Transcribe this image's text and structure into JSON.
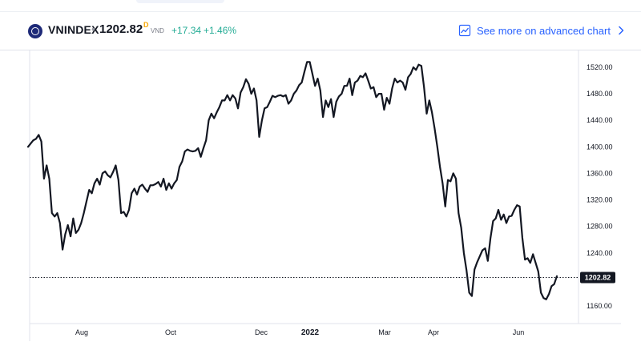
{
  "header": {
    "symbol": "VNINDEX",
    "separator": "•",
    "price": "1202.82",
    "price_superscript": "D",
    "currency": "VND",
    "change": "+17.34",
    "change_pct": "+1.46%",
    "advanced_chart_label": "See more on advanced chart"
  },
  "colors": {
    "line": "#131722",
    "positive": "#22ab94",
    "link": "#2962ff",
    "last_label_bg": "#131722"
  },
  "chart_data": {
    "type": "line",
    "title": "VNINDEX",
    "ylim": [
      1145,
      1537
    ],
    "y_ticks": [
      "1520.00",
      "1480.00",
      "1440.00",
      "1400.00",
      "1360.00",
      "1320.00",
      "1280.00",
      "1240.00",
      "1200.00",
      "1160.00"
    ],
    "x_ticks": [
      "Aug",
      "Oct",
      "Dec",
      "2022",
      "Mar",
      "Apr",
      "Jun"
    ],
    "last_value": 1202.82,
    "last_value_label": "1202.82",
    "series": [
      {
        "values": [
          1400,
          1405,
          1410,
          1412,
          1418,
          1408,
          1352,
          1372,
          1352,
          1300,
          1295,
          1300,
          1285,
          1245,
          1268,
          1282,
          1265,
          1292,
          1270,
          1275,
          1285,
          1300,
          1318,
          1335,
          1330,
          1345,
          1352,
          1343,
          1360,
          1363,
          1357,
          1354,
          1362,
          1372,
          1350,
          1300,
          1302,
          1295,
          1305,
          1330,
          1337,
          1328,
          1340,
          1343,
          1337,
          1332,
          1342,
          1342,
          1344,
          1347,
          1340,
          1352,
          1335,
          1345,
          1337,
          1345,
          1350,
          1370,
          1378,
          1393,
          1396,
          1394,
          1393,
          1394,
          1398,
          1385,
          1398,
          1410,
          1440,
          1450,
          1443,
          1452,
          1460,
          1470,
          1470,
          1478,
          1470,
          1478,
          1473,
          1458,
          1482,
          1490,
          1502,
          1495,
          1480,
          1488,
          1470,
          1415,
          1440,
          1458,
          1460,
          1468,
          1477,
          1475,
          1477,
          1478,
          1476,
          1478,
          1465,
          1470,
          1480,
          1485,
          1493,
          1497,
          1513,
          1528,
          1528,
          1510,
          1492,
          1503,
          1485,
          1445,
          1470,
          1460,
          1472,
          1445,
          1468,
          1476,
          1480,
          1492,
          1492,
          1503,
          1478,
          1497,
          1500,
          1507,
          1505,
          1511,
          1500,
          1488,
          1490,
          1475,
          1480,
          1480,
          1456,
          1474,
          1465,
          1488,
          1503,
          1497,
          1500,
          1497,
          1486,
          1505,
          1510,
          1520,
          1516,
          1524,
          1522,
          1490,
          1450,
          1470,
          1452,
          1428,
          1400,
          1370,
          1345,
          1310,
          1350,
          1348,
          1360,
          1352,
          1300,
          1278,
          1240,
          1214,
          1180,
          1175,
          1215,
          1226,
          1235,
          1244,
          1247,
          1228,
          1262,
          1288,
          1292,
          1305,
          1290,
          1298,
          1285,
          1295,
          1296,
          1305,
          1312,
          1310,
          1263,
          1230,
          1232,
          1225,
          1238,
          1225,
          1212,
          1180,
          1172,
          1170,
          1178,
          1190,
          1193,
          1205
        ]
      }
    ]
  }
}
